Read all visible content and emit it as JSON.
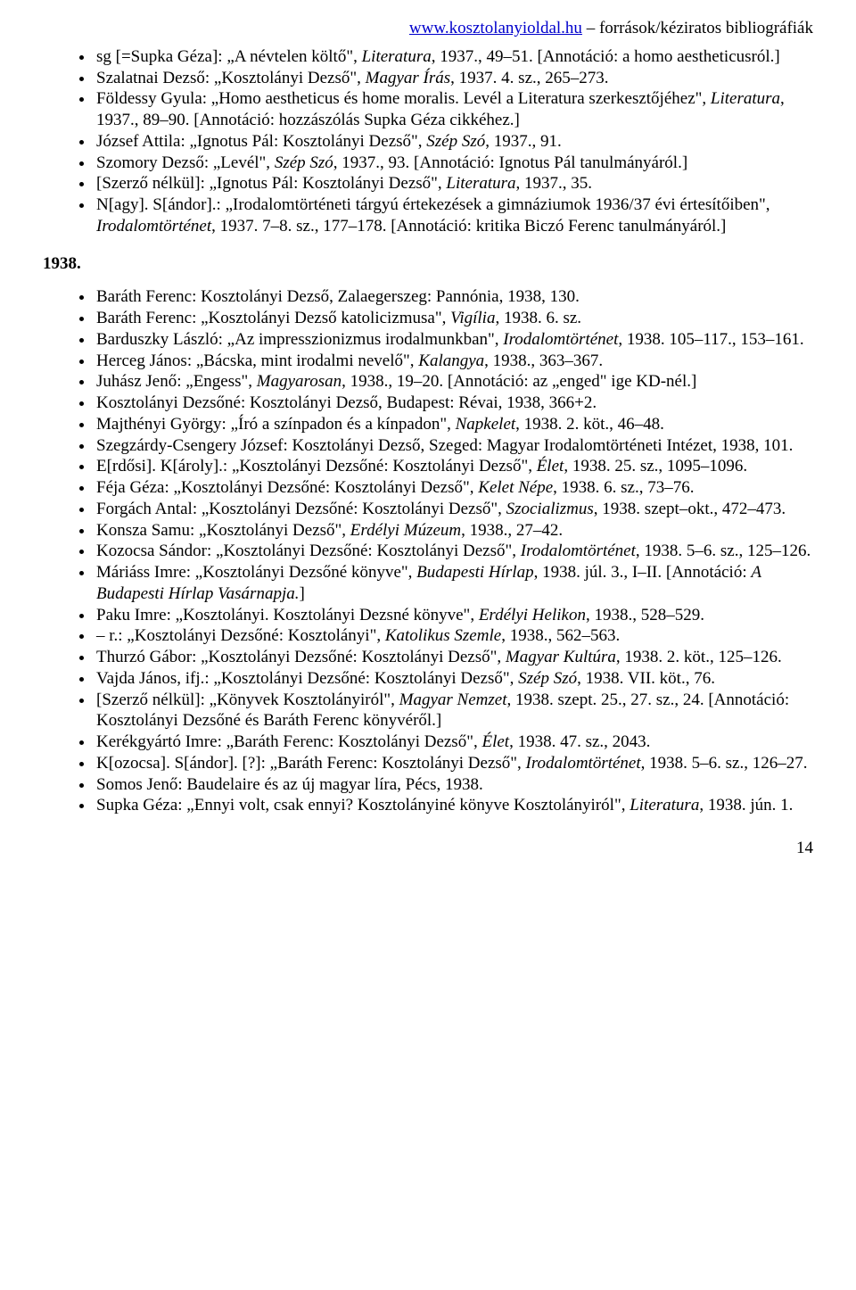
{
  "header": {
    "url": "www.kosztolanyioldal.hu",
    "suffix": " – források/kéziratos bibliográfiák"
  },
  "section1937": [
    "sg [=Supka Géza]: „A névtelen költő\", <i>Literatura</i>, 1937., 49–51. [Annotáció: a homo aestheticusról.]",
    "Szalatnai Dezső: „Kosztolányi Dezső\", <i>Magyar Írás</i>, 1937. 4. sz., 265–273.",
    "Földessy Gyula: „Homo aestheticus és home moralis. Levél a Literatura szerkesztőjéhez\", <i>Literatura</i>, 1937., 89–90. [Annotáció: hozzászólás Supka Géza cikkéhez.]",
    "József Attila: „Ignotus Pál: Kosztolányi Dezső\", <i>Szép Szó</i>, 1937., 91.",
    "Szomory Dezső: „Levél\", <i>Szép Szó</i>, 1937., 93. [Annotáció: Ignotus Pál tanulmányáról.]",
    "[Szerző nélkül]: „Ignotus Pál: Kosztolányi Dezső\", <i>Literatura</i>, 1937., 35.",
    "N[agy]. S[ándor].: „Irodalomtörténeti tárgyú értekezések a gimnáziumok 1936/37 évi értesítőiben\", <i>Irodalomtörténet</i>, 1937. 7–8. sz., 177–178. [Annotáció: kritika Biczó Ferenc tanulmányáról.]"
  ],
  "yearLabel": "1938.",
  "section1938": [
    "Baráth Ferenc: Kosztolányi Dezső, Zalaegerszeg: Pannónia, 1938, 130.",
    "Baráth Ferenc: „Kosztolányi Dezső katolicizmusa\", <i>Vigília</i>, 1938. 6. sz.",
    "Barduszky László: „Az impresszionizmus irodalmunkban\", <i>Irodalomtörténet</i>, 1938. 105–117., 153–161.",
    "Herceg János: „Bácska, mint irodalmi nevelő\", <i>Kalangya</i>, 1938., 363–367.",
    "Juhász Jenő: „Engess\", <i>Magyarosan</i>, 1938., 19–20. [Annotáció: az „enged\" ige KD-nél.]",
    "Kosztolányi Dezsőné: Kosztolányi Dezső, Budapest: Révai, 1938, 366+2.",
    "Majthényi György: „Író a színpadon és a kínpadon\", <i>Napkelet</i>, 1938. 2. köt., 46–48.",
    "Szegzárdy-Csengery József: Kosztolányi Dezső, Szeged: Magyar Irodalomtörténeti Intézet, 1938, 101.",
    "E[rdősi]. K[ároly].: „Kosztolányi Dezsőné: Kosztolányi Dezső\", <i>Élet</i>, 1938. 25. sz., 1095–1096.",
    "Féja Géza: „Kosztolányi Dezsőné: Kosztolányi Dezső\", <i>Kelet Népe</i>, 1938. 6. sz., 73–76.",
    "Forgách Antal: „Kosztolányi Dezsőné: Kosztolányi Dezső\", <i>Szocializmus</i>, 1938. szept–okt., 472–473.",
    "Konsza Samu: „Kosztolányi Dezső\", <i>Erdélyi Múzeum</i>, 1938., 27–42.",
    "Kozocsa Sándor: „Kosztolányi Dezsőné: Kosztolányi Dezső\", <i>Irodalomtörténet</i>, 1938. 5–6. sz., 125–126.",
    "Máriáss Imre: „Kosztolányi Dezsőné könyve\", <i>Budapesti Hírlap</i>, 1938. júl. 3., I–II. [Annotáció: <i>A Budapesti Hírlap Vasárnapja.</i>]",
    "Paku Imre: „Kosztolányi. Kosztolányi Dezsné könyve\", <i>Erdélyi Helikon</i>, 1938., 528–529.",
    "– r.: „Kosztolányi Dezsőné: Kosztolányi\", <i>Katolikus Szemle</i>, 1938., 562–563.",
    "Thurzó Gábor: „Kosztolányi Dezsőné: Kosztolányi Dezső\", <i>Magyar Kultúra</i>, 1938. 2. köt., 125–126.",
    "Vajda János, ifj.: „Kosztolányi Dezsőné: Kosztolányi Dezső\", <i>Szép Szó</i>, 1938. VII. köt., 76.",
    "[Szerző nélkül]: „Könyvek Kosztolányiról\", <i>Magyar Nemzet</i>, 1938. szept. 25., 27. sz., 24. [Annotáció: Kosztolányi Dezsőné és Baráth Ferenc könyvéről.]",
    "Kerékgyártó Imre: „Baráth Ferenc: Kosztolányi Dezső\", <i>Élet</i>, 1938. 47. sz., 2043.",
    "K[ozocsa]. S[ándor]. [?]: „Baráth Ferenc: Kosztolányi Dezső\", <i>Irodalomtörténet</i>, 1938. 5–6. sz., 126–27.",
    "Somos Jenő: Baudelaire és az új magyar líra, Pécs, 1938.",
    "Supka Géza: „Ennyi volt, csak ennyi? Kosztolányiné könyve Kosztolányiról\", <i>Literatura</i>, 1938. jún. 1."
  ],
  "pageNumber": "14"
}
